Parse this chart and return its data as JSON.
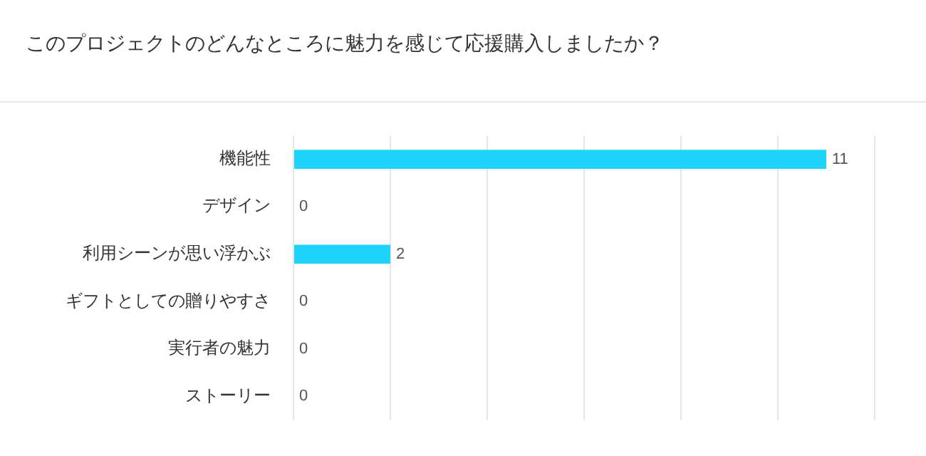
{
  "chart_data": {
    "type": "bar",
    "orientation": "horizontal",
    "title": "このプロジェクトのどんなところに魅力を感じて応援購入しましたか？",
    "categories": [
      "機能性",
      "デザイン",
      "利用シーンが思い浮かぶ",
      "ギフトとしての贈りやすさ",
      "実行者の魅力",
      "ストーリー"
    ],
    "values": [
      11,
      0,
      2,
      0,
      0,
      0
    ],
    "color": "#1fd3fb",
    "xlim": [
      0,
      12
    ],
    "xticks": [
      {
        "value": 0,
        "label": null
      },
      {
        "value": 2,
        "label": null
      },
      {
        "value": 4,
        "label": null
      },
      {
        "value": 6,
        "label": null
      },
      {
        "value": 8,
        "label": null
      },
      {
        "value": 10,
        "label": null
      },
      {
        "value": 12,
        "label": null
      }
    ],
    "grid": "x",
    "tick_labels": "y",
    "data_labels": true
  }
}
